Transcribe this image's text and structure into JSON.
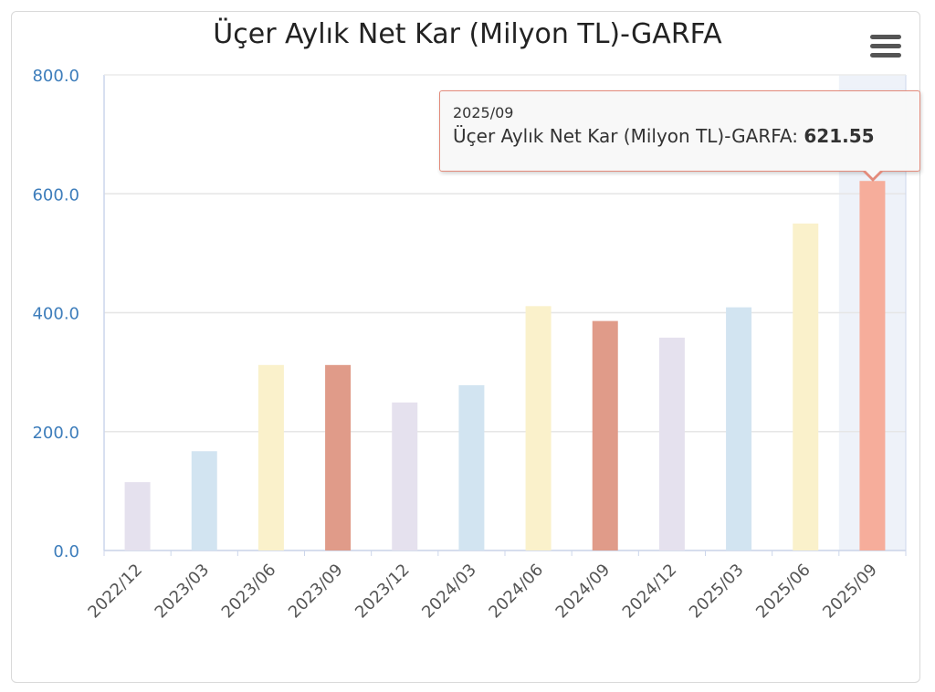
{
  "chart_data": {
    "type": "bar",
    "title": "Üçer Aylık Net Kar (Milyon TL)-GARFA",
    "categories": [
      "2022/12",
      "2023/03",
      "2023/06",
      "2023/09",
      "2023/12",
      "2024/03",
      "2024/06",
      "2024/09",
      "2024/12",
      "2025/03",
      "2025/06",
      "2025/09"
    ],
    "values": [
      115,
      167,
      312,
      312,
      249,
      278,
      411,
      386,
      358,
      409,
      550,
      621.55
    ],
    "bar_colors": [
      "#e5e1ee",
      "#d2e4f1",
      "#faf1cb",
      "#e09b89",
      "#e5e1ee",
      "#d2e4f1",
      "#faf1cb",
      "#e09b89",
      "#e5e1ee",
      "#d2e4f1",
      "#faf1cb",
      "#f6ad9b"
    ],
    "ylim": [
      0,
      800
    ],
    "yticks": [
      "0.0",
      "200.0",
      "400.0",
      "600.0",
      "800.0"
    ],
    "ytick_values": [
      0,
      200,
      400,
      600,
      800
    ],
    "highlighted_index": 11,
    "tooltip": {
      "date": "2025/09",
      "series_label": "Üçer Aylık Net Kar (Milyon TL)-GARFA: ",
      "value": "621.55"
    },
    "grid": true,
    "axis_color": "#ccd6eb",
    "label_color": "#3d7dbb"
  }
}
